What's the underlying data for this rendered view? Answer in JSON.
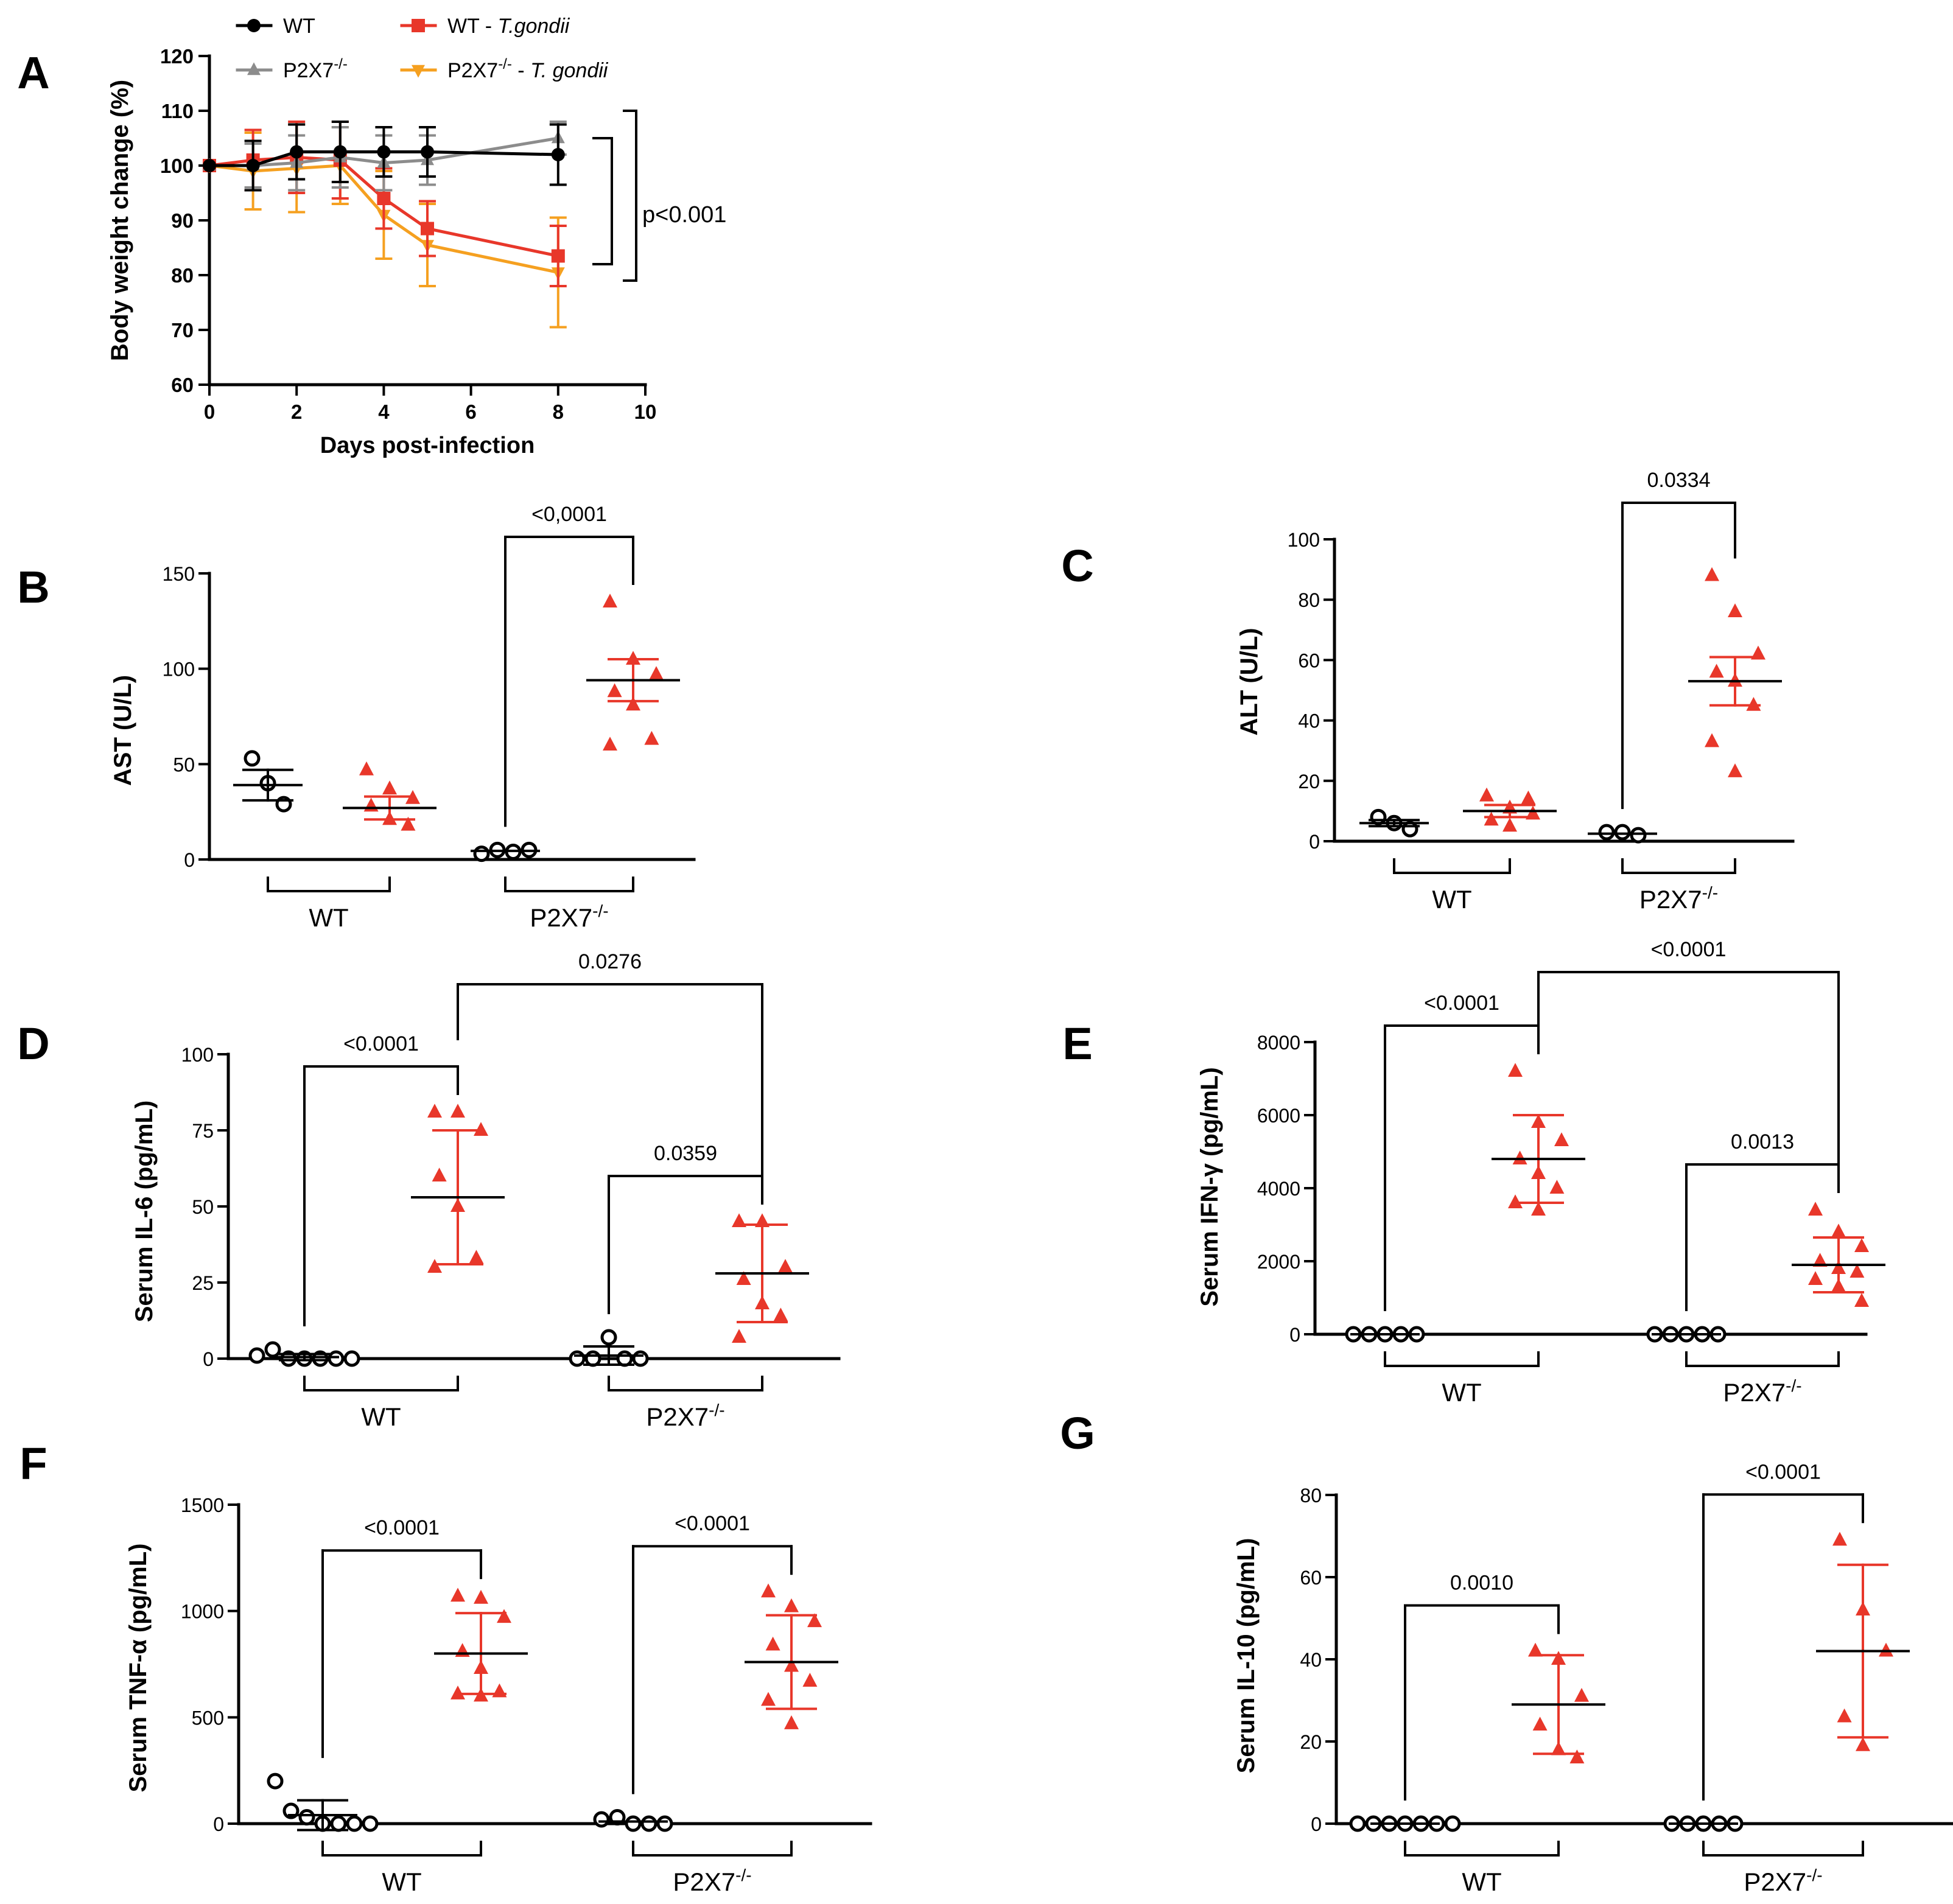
{
  "colors": {
    "black": "#000000",
    "gray": "#8c8c8c",
    "red": "#e8372a",
    "orange": "#f5a020"
  },
  "chart_data": [
    {
      "id": "A",
      "panel_letter": "A",
      "type": "line",
      "xlabel": "Days post-infection",
      "ylabel": "Body weight change (%)",
      "xlim": [
        0,
        10
      ],
      "ylim": [
        60,
        120
      ],
      "xticks": [
        "0",
        "2",
        "4",
        "6",
        "8",
        "10"
      ],
      "yticks": [
        "60",
        "70",
        "80",
        "90",
        "100",
        "110",
        "120"
      ],
      "x": [
        0,
        1,
        2,
        3,
        4,
        5,
        8
      ],
      "series": [
        {
          "name": "WT",
          "italic": "",
          "color": "#000000",
          "marker": "circle",
          "values": [
            100,
            100,
            102.5,
            102.5,
            102.5,
            102.5,
            102
          ],
          "errors": [
            0,
            4.5,
            5,
            5.5,
            4.5,
            4.5,
            5.5
          ]
        },
        {
          "name": "P2X7",
          "sup": "-/-",
          "italic": "",
          "color": "#8c8c8c",
          "marker": "triangle",
          "values": [
            100,
            100,
            100.5,
            101.5,
            100.5,
            101,
            105
          ],
          "errors": [
            0,
            4,
            5,
            5.5,
            5,
            4.5,
            3
          ]
        },
        {
          "name": "WT - ",
          "italic": "T.gondii",
          "color": "#e8372a",
          "marker": "square",
          "values": [
            100,
            101,
            101.5,
            101,
            94,
            88.5,
            83.5
          ],
          "errors": [
            0,
            5.5,
            6.5,
            7,
            5.5,
            5,
            5.5
          ]
        },
        {
          "name": "P2X7",
          "sup": "-/-",
          "italic": "T. gondii",
          "color": "#f5a020",
          "marker": "triangle-down",
          "values": [
            100,
            99,
            99.5,
            100,
            91,
            85.5,
            80.5
          ],
          "errors": [
            0,
            7,
            8,
            7,
            8,
            7.5,
            10
          ]
        }
      ],
      "legend_position": "top",
      "annotation": "p<0.001"
    },
    {
      "id": "B",
      "panel_letter": "B",
      "type": "scatter",
      "ylabel": "AST (U/L)",
      "ylim": [
        0,
        150
      ],
      "yticks": [
        "0",
        "50",
        "100",
        "150"
      ],
      "group_labels": [
        {
          "text": "WT",
          "sup": ""
        },
        {
          "text": "P2X7",
          "sup": "-/-"
        }
      ],
      "groups": [
        {
          "infected": false,
          "points": [
            53,
            40,
            29
          ],
          "mean": 39,
          "err": 8
        },
        {
          "infected": true,
          "points": [
            47,
            37,
            32,
            28,
            21,
            18
          ],
          "mean": 27,
          "err": 6
        },
        {
          "infected": false,
          "points": [
            3,
            5,
            4,
            5
          ],
          "mean": 4.5,
          "err": 0
        },
        {
          "infected": true,
          "points": [
            135,
            105,
            97,
            88,
            81,
            63,
            60
          ],
          "mean": 94,
          "err": 11
        }
      ],
      "comparisons": [
        {
          "from": 2,
          "to": 3,
          "label": "<0,0001",
          "level": 0
        }
      ]
    },
    {
      "id": "C",
      "panel_letter": "C",
      "type": "scatter",
      "ylabel": "ALT (U/L)",
      "ylim": [
        0,
        100
      ],
      "yticks": [
        "0",
        "20",
        "40",
        "60",
        "80",
        "100"
      ],
      "group_labels": [
        {
          "text": "WT",
          "sup": ""
        },
        {
          "text": "P2X7",
          "sup": "-/-"
        }
      ],
      "groups": [
        {
          "infected": false,
          "points": [
            8,
            6,
            4
          ],
          "mean": 6,
          "err": 1
        },
        {
          "infected": true,
          "points": [
            15,
            11,
            9,
            7,
            5,
            14
          ],
          "mean": 10,
          "err": 2
        },
        {
          "infected": false,
          "points": [
            3,
            3,
            2
          ],
          "mean": 2.5,
          "err": 0
        },
        {
          "infected": true,
          "points": [
            88,
            76,
            62,
            56,
            53,
            45,
            33,
            23
          ],
          "mean": 53,
          "err": 8
        }
      ],
      "comparisons": [
        {
          "from": 2,
          "to": 3,
          "label": "0.0334",
          "level": 0
        }
      ]
    },
    {
      "id": "D",
      "panel_letter": "D",
      "type": "scatter",
      "ylabel": "Serum IL-6 (pg/mL)",
      "ylim": [
        0,
        100
      ],
      "yticks": [
        "0",
        "25",
        "50",
        "75",
        "100"
      ],
      "group_labels": [
        {
          "text": "WT",
          "sup": ""
        },
        {
          "text": "P2X7",
          "sup": "-/-"
        }
      ],
      "groups": [
        {
          "infected": false,
          "points": [
            1,
            3,
            0,
            0,
            0,
            0,
            0
          ],
          "mean": 0.5,
          "err": 1
        },
        {
          "infected": true,
          "points": [
            81,
            81,
            75,
            60,
            50,
            33,
            30
          ],
          "mean": 53,
          "err": 22
        },
        {
          "infected": false,
          "points": [
            0,
            0,
            7,
            0,
            0
          ],
          "mean": 1,
          "err": 3
        },
        {
          "infected": true,
          "points": [
            45,
            45,
            30,
            26,
            18,
            14,
            7
          ],
          "mean": 28,
          "err": 16
        }
      ],
      "comparisons": [
        {
          "from": 0,
          "to": 1,
          "label": "<0.0001",
          "level": 0
        },
        {
          "from": 2,
          "to": 3,
          "label": "0.0359",
          "level": 0
        },
        {
          "from": 1,
          "to": 3,
          "label": "0.0276",
          "level": 1
        }
      ]
    },
    {
      "id": "E",
      "panel_letter": "E",
      "type": "scatter",
      "ylabel": "Serum IFN-γ (pg/mL)",
      "ylim": [
        0,
        8000
      ],
      "yticks": [
        "0",
        "2000",
        "4000",
        "6000",
        "8000"
      ],
      "group_labels": [
        {
          "text": "WT",
          "sup": ""
        },
        {
          "text": "P2X7",
          "sup": "-/-"
        }
      ],
      "groups": [
        {
          "infected": false,
          "points": [
            0,
            0,
            0,
            0,
            0
          ],
          "mean": 0,
          "err": 0
        },
        {
          "infected": true,
          "points": [
            7200,
            5800,
            5300,
            4800,
            4400,
            4000,
            3600,
            3400
          ],
          "mean": 4800,
          "err": 1200
        },
        {
          "infected": false,
          "points": [
            0,
            0,
            0,
            0,
            0
          ],
          "mean": 0,
          "err": 0
        },
        {
          "infected": true,
          "points": [
            3400,
            2800,
            2400,
            2000,
            1800,
            1700,
            1500,
            1300,
            900
          ],
          "mean": 1900,
          "err": 750
        }
      ],
      "comparisons": [
        {
          "from": 0,
          "to": 1,
          "label": "<0.0001",
          "level": 0
        },
        {
          "from": 2,
          "to": 3,
          "label": "0.0013",
          "level": 0
        },
        {
          "from": 1,
          "to": 3,
          "label": "<0.0001",
          "level": 1
        }
      ]
    },
    {
      "id": "F",
      "panel_letter": "F",
      "type": "scatter",
      "ylabel": "Serum TNF-α (pg/mL)",
      "ylim": [
        0,
        1500
      ],
      "yticks": [
        "0",
        "500",
        "1000",
        "1500"
      ],
      "group_labels": [
        {
          "text": "WT",
          "sup": ""
        },
        {
          "text": "P2X7",
          "sup": "-/-"
        }
      ],
      "groups": [
        {
          "infected": false,
          "points": [
            200,
            60,
            30,
            0,
            0,
            0,
            0
          ],
          "mean": 40,
          "err": 70
        },
        {
          "infected": true,
          "points": [
            1070,
            1060,
            970,
            810,
            730,
            620,
            610,
            600
          ],
          "mean": 800,
          "err": 190
        },
        {
          "infected": false,
          "points": [
            20,
            30,
            0,
            0,
            0
          ],
          "mean": 10,
          "err": 0
        },
        {
          "infected": true,
          "points": [
            1090,
            1020,
            950,
            840,
            740,
            670,
            580,
            470
          ],
          "mean": 760,
          "err": 220
        }
      ],
      "comparisons": [
        {
          "from": 0,
          "to": 1,
          "label": "<0.0001",
          "level": 0
        },
        {
          "from": 2,
          "to": 3,
          "label": "<0.0001",
          "level": 0
        }
      ]
    },
    {
      "id": "G",
      "panel_letter": "G",
      "type": "scatter",
      "ylabel": "Serum IL-10 (pg/mL)",
      "ylim": [
        0,
        80
      ],
      "yticks": [
        "0",
        "20",
        "40",
        "60",
        "80"
      ],
      "group_labels": [
        {
          "text": "WT",
          "sup": ""
        },
        {
          "text": "P2X7",
          "sup": "-/-"
        }
      ],
      "groups": [
        {
          "infected": false,
          "points": [
            0,
            0,
            0,
            0,
            0,
            0,
            0
          ],
          "mean": 0,
          "err": 0
        },
        {
          "infected": true,
          "points": [
            42,
            40,
            31,
            24,
            18,
            16
          ],
          "mean": 29,
          "err": 12
        },
        {
          "infected": false,
          "points": [
            0,
            0,
            0,
            0,
            0
          ],
          "mean": 0,
          "err": 0
        },
        {
          "infected": true,
          "points": [
            69,
            52,
            42,
            26,
            19
          ],
          "mean": 42,
          "err": 21
        }
      ],
      "comparisons": [
        {
          "from": 0,
          "to": 1,
          "label": "0.0010",
          "level": 0
        },
        {
          "from": 2,
          "to": 3,
          "label": "<0.0001",
          "level": 0
        }
      ]
    }
  ]
}
